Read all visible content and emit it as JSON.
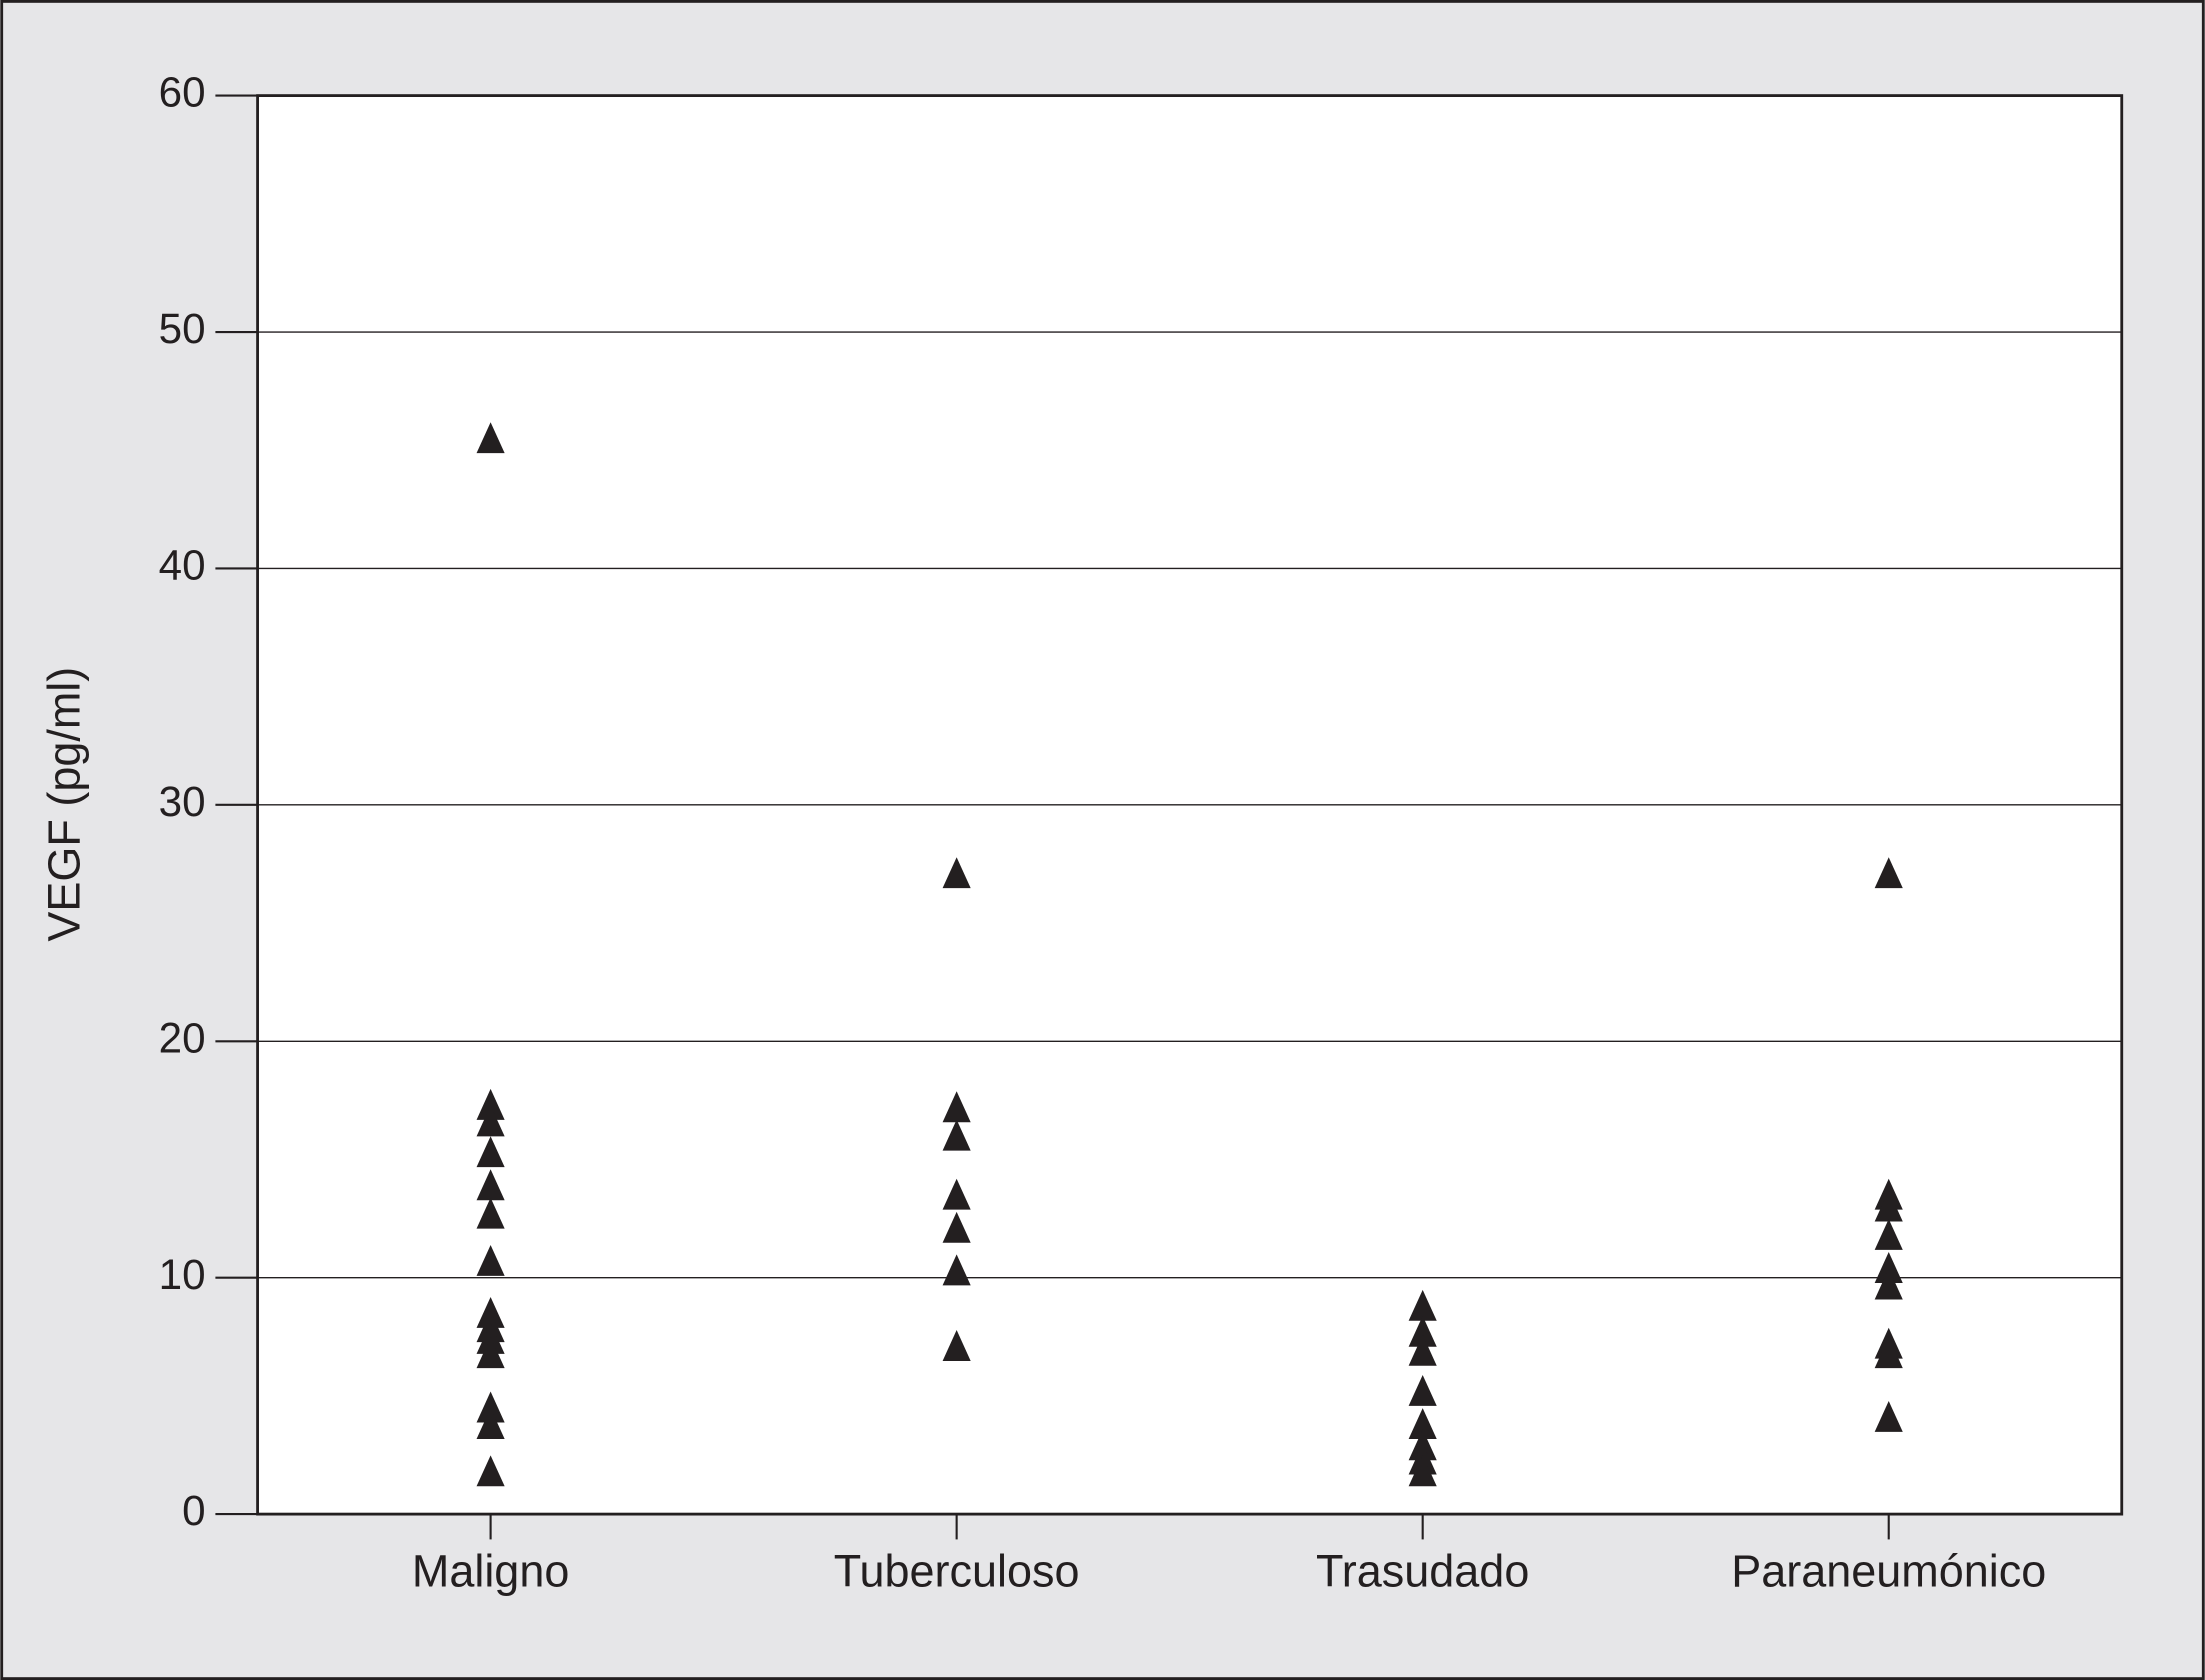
{
  "chart_data": {
    "type": "strip",
    "y_label": "VEGF (pg/ml)",
    "categories": [
      "Maligno",
      "Tuberculoso",
      "Trasudado",
      "Paraneumónico"
    ],
    "values": [
      [
        45.4,
        17.2,
        16.5,
        15.2,
        13.8,
        12.6,
        10.6,
        8.4,
        7.8,
        7.3,
        6.7,
        4.4,
        3.7,
        1.7
      ],
      [
        27,
        17.1,
        15.9,
        13.4,
        12,
        10.2,
        7
      ],
      [
        8.7,
        7.6,
        6.8,
        5.1,
        3.7,
        2.8,
        2.2,
        1.7
      ],
      [
        27,
        13.4,
        12.9,
        11.7,
        10.3,
        9.6,
        7.1,
        6.7,
        4
      ]
    ],
    "color": "#231f20",
    "marker": "triangle",
    "ylim": [
      0,
      60
    ],
    "yticks": [
      0,
      10,
      20,
      30,
      40,
      50,
      60
    ],
    "grid": true
  }
}
